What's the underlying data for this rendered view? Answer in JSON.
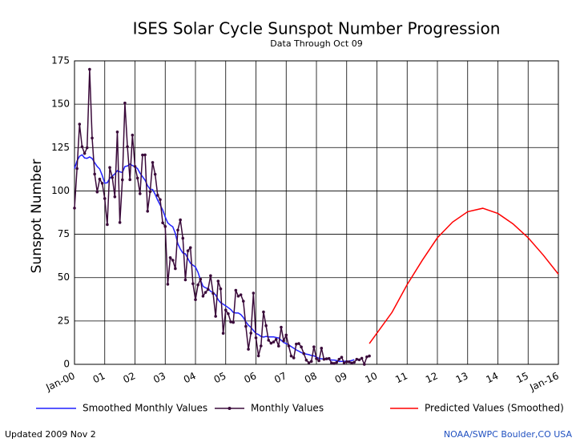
{
  "chart_data": {
    "type": "line",
    "title": "ISES Solar Cycle Sunspot Number Progression",
    "subtitle": "Data Through Oct 09",
    "y_label": "Sunspot Number",
    "xlim": [
      0,
      192
    ],
    "xticks": [
      {
        "value": 0,
        "label": "Jan-00"
      },
      {
        "value": 12,
        "label": "01"
      },
      {
        "value": 24,
        "label": "02"
      },
      {
        "value": 36,
        "label": "03"
      },
      {
        "value": 48,
        "label": "04"
      },
      {
        "value": 60,
        "label": "05"
      },
      {
        "value": 72,
        "label": "06"
      },
      {
        "value": 84,
        "label": "07"
      },
      {
        "value": 96,
        "label": "08"
      },
      {
        "value": 108,
        "label": "09"
      },
      {
        "value": 120,
        "label": "10"
      },
      {
        "value": 132,
        "label": "11"
      },
      {
        "value": 144,
        "label": "12"
      },
      {
        "value": 156,
        "label": "13"
      },
      {
        "value": 168,
        "label": "14"
      },
      {
        "value": 180,
        "label": "15"
      },
      {
        "value": 192,
        "label": "Jan-16"
      }
    ],
    "ylim": [
      0,
      175
    ],
    "yticks": [
      0,
      25,
      50,
      75,
      100,
      125,
      150,
      175
    ],
    "grid": true,
    "series": [
      {
        "name": "Smoothed Monthly Values",
        "color": "#2020ff",
        "markers": false,
        "x": [
          0,
          1,
          2,
          3,
          4,
          5,
          6,
          7,
          8,
          9,
          10,
          11,
          12,
          13,
          14,
          15,
          16,
          17,
          18,
          19,
          20,
          21,
          22,
          23,
          24,
          25,
          26,
          27,
          28,
          29,
          30,
          31,
          32,
          33,
          34,
          35,
          36,
          37,
          38,
          39,
          40,
          41,
          42,
          43,
          44,
          45,
          46,
          47,
          48,
          49,
          50,
          51,
          52,
          53,
          54,
          55,
          56,
          57,
          58,
          59,
          60,
          61,
          62,
          63,
          64,
          65,
          66,
          67,
          68,
          69,
          70,
          71,
          72,
          73,
          74,
          75,
          76,
          77,
          78,
          79,
          80,
          81,
          82,
          83,
          84,
          85,
          86,
          87,
          88,
          89,
          90,
          91,
          92,
          93,
          94,
          95,
          96,
          97,
          98,
          99,
          100,
          101,
          102,
          103,
          104,
          105,
          106,
          107,
          108,
          109,
          110,
          111
        ],
        "values": [
          112.9,
          117.3,
          120.0,
          120.8,
          119.0,
          118.8,
          119.6,
          118.7,
          116.3,
          114.1,
          112.6,
          108.9,
          104.5,
          104.7,
          107.3,
          108.6,
          109.8,
          111.7,
          111.0,
          110.6,
          114.1,
          114.4,
          115.5,
          114.6,
          114.0,
          112.9,
          110.2,
          108.2,
          106.2,
          103.0,
          101.0,
          100.8,
          98.0,
          94.7,
          91.9,
          89.0,
          85.0,
          81.6,
          80.3,
          79.3,
          75.5,
          69.5,
          66.5,
          64.2,
          63.7,
          61.0,
          58.3,
          57.2,
          56.1,
          53.1,
          48.6,
          45.0,
          44.1,
          43.7,
          42.1,
          41.4,
          40.0,
          37.3,
          35.5,
          34.7,
          33.7,
          32.7,
          31.6,
          29.9,
          29.6,
          29.6,
          28.7,
          27.0,
          24.5,
          22.6,
          21.3,
          19.5,
          17.8,
          17.2,
          16.1,
          15.7,
          16.1,
          15.8,
          15.8,
          15.8,
          15.5,
          15.2,
          13.9,
          12.6,
          12.0,
          11.2,
          10.2,
          9.3,
          8.3,
          7.6,
          6.8,
          6.2,
          5.9,
          5.6,
          5.1,
          4.9,
          4.2,
          3.4,
          3.2,
          3.2,
          3.2,
          2.8,
          2.5,
          2.5,
          2.2,
          1.6,
          1.7,
          1.8,
          1.8,
          1.9,
          2.2,
          2.7
        ]
      },
      {
        "name": "Monthly Values",
        "color": "#3a0a3a",
        "markers": true,
        "x": [
          0,
          1,
          2,
          3,
          4,
          5,
          6,
          7,
          8,
          9,
          10,
          11,
          12,
          13,
          14,
          15,
          16,
          17,
          18,
          19,
          20,
          21,
          22,
          23,
          24,
          25,
          26,
          27,
          28,
          29,
          30,
          31,
          32,
          33,
          34,
          35,
          36,
          37,
          38,
          39,
          40,
          41,
          42,
          43,
          44,
          45,
          46,
          47,
          48,
          49,
          50,
          51,
          52,
          53,
          54,
          55,
          56,
          57,
          58,
          59,
          60,
          61,
          62,
          63,
          64,
          65,
          66,
          67,
          68,
          69,
          70,
          71,
          72,
          73,
          74,
          75,
          76,
          77,
          78,
          79,
          80,
          81,
          82,
          83,
          84,
          85,
          86,
          87,
          88,
          89,
          90,
          91,
          92,
          93,
          94,
          95,
          96,
          97,
          98,
          99,
          100,
          101,
          102,
          103,
          104,
          105,
          106,
          107,
          108,
          109,
          110,
          111,
          112,
          113,
          114,
          115,
          116,
          117
        ],
        "values": [
          90.1,
          112.9,
          138.5,
          125.5,
          121.6,
          124.9,
          170.1,
          130.5,
          109.7,
          99.4,
          106.8,
          104.4,
          95.6,
          80.6,
          113.5,
          107.7,
          96.6,
          134.0,
          81.8,
          106.4,
          150.7,
          125.5,
          106.5,
          132.2,
          114.1,
          107.4,
          98.4,
          120.7,
          120.8,
          88.3,
          99.6,
          116.4,
          109.6,
          97.5,
          95.0,
          81.6,
          79.5,
          46.2,
          61.5,
          60.0,
          55.2,
          77.4,
          83.3,
          72.7,
          48.7,
          65.5,
          67.3,
          46.5,
          37.3,
          45.8,
          49.1,
          39.3,
          41.5,
          43.2,
          51.1,
          40.9,
          27.7,
          48.0,
          43.5,
          17.9,
          31.3,
          29.2,
          24.5,
          24.2,
          42.7,
          39.3,
          40.1,
          36.4,
          21.9,
          8.7,
          18.0,
          41.1,
          15.3,
          4.9,
          10.6,
          30.2,
          22.3,
          13.9,
          12.2,
          12.9,
          14.4,
          10.5,
          21.4,
          13.6,
          16.9,
          10.6,
          4.8,
          3.7,
          11.7,
          12.0,
          10.0,
          6.2,
          2.4,
          0.9,
          1.7,
          10.1,
          3.3,
          2.1,
          9.3,
          2.9,
          3.2,
          3.4,
          0.8,
          0.5,
          1.1,
          2.9,
          4.1,
          0.8,
          1.5,
          1.4,
          0.7,
          1.2,
          2.9,
          2.6,
          3.5,
          0.0,
          4.3,
          4.8
        ]
      },
      {
        "name": "Predicted Values (Smoothed)",
        "color": "#ff0000",
        "markers": false,
        "x": [
          117,
          120,
          126,
          132,
          138,
          144,
          150,
          156,
          162,
          168,
          174,
          180,
          186,
          192
        ],
        "values": [
          12,
          18,
          30,
          46,
          60,
          73,
          82,
          88,
          90,
          87,
          81,
          73,
          63,
          52
        ]
      }
    ],
    "footer_left": "Updated 2009 Nov  2",
    "footer_right": "NOAA/SWPC Boulder,CO USA"
  }
}
